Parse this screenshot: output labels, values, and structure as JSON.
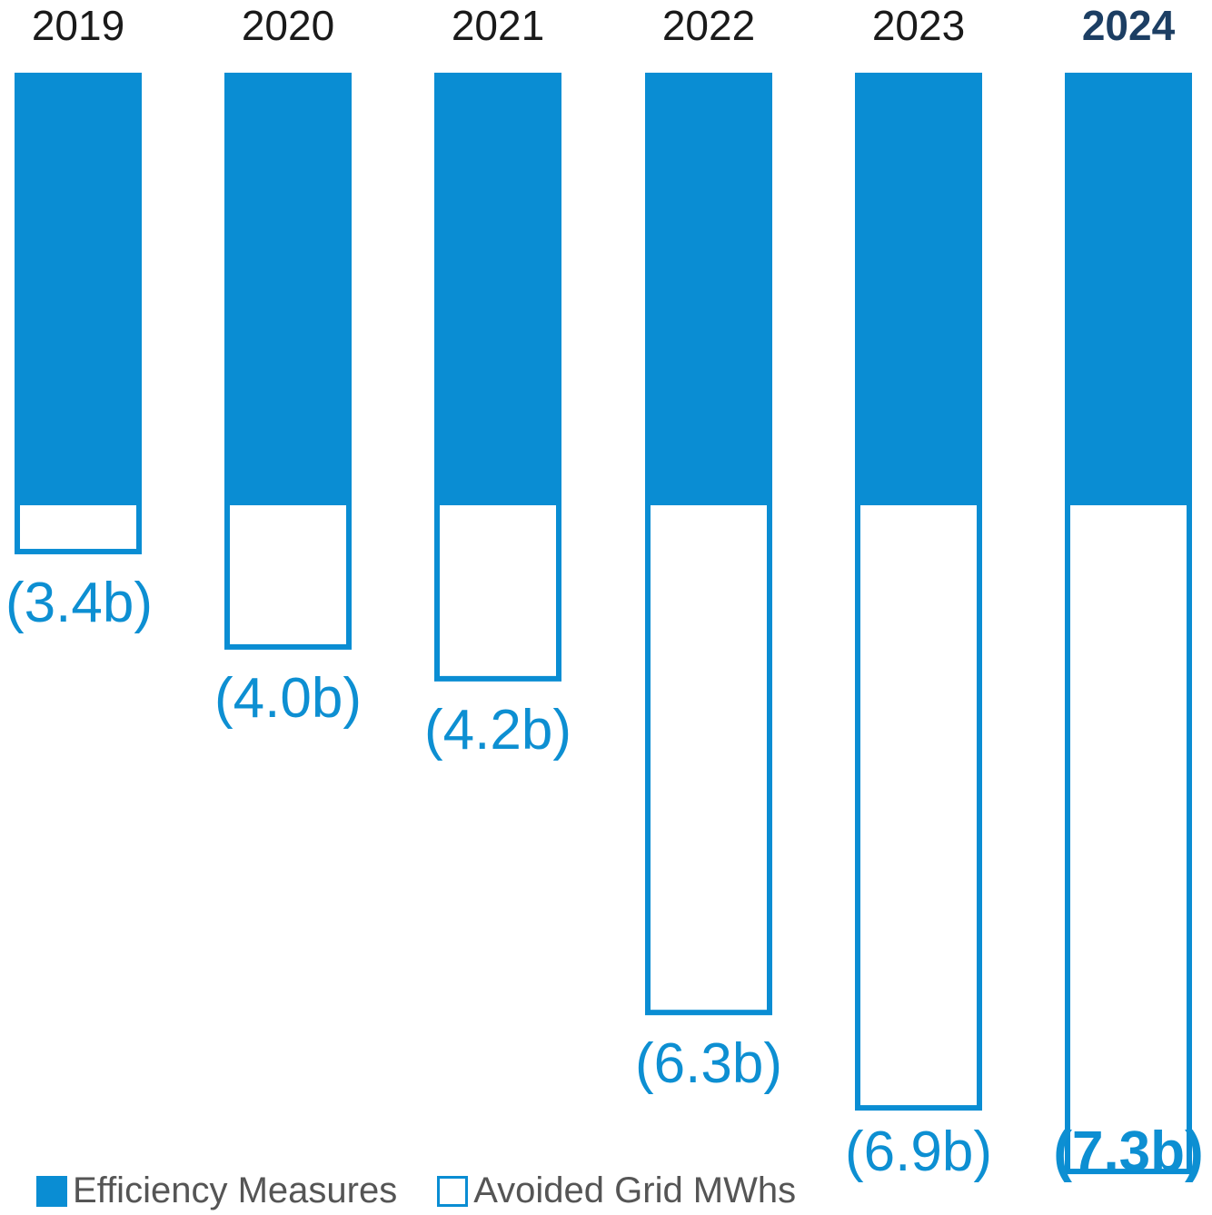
{
  "chart_data": {
    "type": "bar",
    "title": "",
    "categories": [
      "2019",
      "2020",
      "2021",
      "2022",
      "2023",
      "2024"
    ],
    "highlight_category": "2024",
    "series": [
      {
        "name": "Efficiency Measures",
        "style": "filled",
        "color": "#0a8dd3",
        "values": [
          1.0,
          1.0,
          1.0,
          1.0,
          1.0,
          1.0
        ]
      },
      {
        "name": "Avoided Grid MWhs",
        "style": "outline",
        "color": "#0a8dd3",
        "values": [
          3.4,
          4.0,
          4.2,
          6.3,
          6.9,
          7.3
        ]
      }
    ],
    "value_labels": [
      "(3.4b)",
      "(4.0b)",
      "(4.2b)",
      "(6.3b)",
      "(6.9b)",
      "(7.3b)"
    ],
    "legend": [
      "Efficiency Measures",
      "Avoided Grid MWhs"
    ],
    "grid": false
  }
}
